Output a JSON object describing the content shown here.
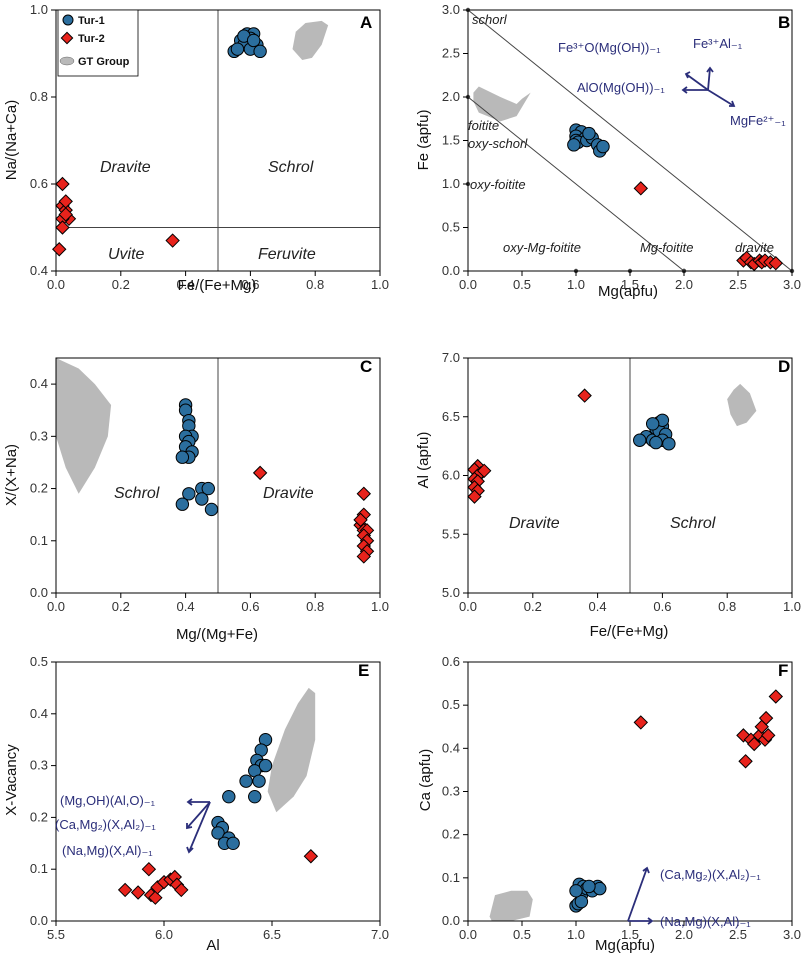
{
  "colors": {
    "tur1": "#2b6e9e",
    "tur2": "#e8231c",
    "gt": "#b9b9b9",
    "vector": "#2b2e7a"
  },
  "legend": {
    "items": [
      "Tur-1",
      "Tur-2",
      "GT Group"
    ],
    "placement": "top-left of panel A"
  },
  "chart_data": [
    {
      "panel": "A",
      "type": "scatter",
      "xlabel": "Fe/(Fe+Mg)",
      "ylabel": "Na/(Na+Ca)",
      "xlim": [
        0,
        1.0
      ],
      "ylim": [
        0.4,
        1.0
      ],
      "xticks": [
        "0.0",
        "0.2",
        "0.4",
        "0.6",
        "0.8",
        "1.0"
      ],
      "yticks": [
        "0.4",
        "0.6",
        "0.8",
        "1.0"
      ],
      "field_labels": [
        "Dravite",
        "Schrol",
        "Uvite",
        "Feruvite"
      ],
      "boundary_lines": [
        {
          "x": 0.5
        },
        {
          "y": 0.5
        }
      ],
      "series": [
        {
          "name": "Tur-1",
          "points": [
            [
              0.55,
              0.905
            ],
            [
              0.57,
              0.93
            ],
            [
              0.59,
              0.945
            ],
            [
              0.61,
              0.945
            ],
            [
              0.6,
              0.935
            ],
            [
              0.58,
              0.92
            ],
            [
              0.62,
              0.92
            ],
            [
              0.6,
              0.91
            ],
            [
              0.63,
              0.905
            ],
            [
              0.56,
              0.91
            ],
            [
              0.58,
              0.94
            ],
            [
              0.61,
              0.93
            ]
          ]
        },
        {
          "name": "Tur-2",
          "points": [
            [
              0.02,
              0.6
            ],
            [
              0.02,
              0.55
            ],
            [
              0.03,
              0.54
            ],
            [
              0.04,
              0.52
            ],
            [
              0.02,
              0.52
            ],
            [
              0.03,
              0.56
            ],
            [
              0.02,
              0.5
            ],
            [
              0.01,
              0.45
            ],
            [
              0.36,
              0.47
            ],
            [
              0.03,
              0.53
            ]
          ]
        },
        {
          "name": "GT Group",
          "polygon": [
            [
              0.74,
              0.95
            ],
            [
              0.77,
              0.97
            ],
            [
              0.82,
              0.975
            ],
            [
              0.84,
              0.965
            ],
            [
              0.82,
              0.92
            ],
            [
              0.79,
              0.89
            ],
            [
              0.76,
              0.885
            ],
            [
              0.73,
              0.91
            ]
          ]
        }
      ]
    },
    {
      "panel": "B",
      "type": "scatter",
      "xlabel": "Mg(apfu)",
      "ylabel": "Fe (apfu)",
      "xlim": [
        0,
        3.0
      ],
      "ylim": [
        0,
        3.0
      ],
      "xticks": [
        "0.0",
        "0.5",
        "1.0",
        "1.5",
        "2.0",
        "2.5",
        "3.0"
      ],
      "yticks": [
        "0.0",
        "0.5",
        "1.0",
        "1.5",
        "2.0",
        "2.5",
        "3.0"
      ],
      "field_labels": [
        "schorl",
        "foitite",
        "oxy-schorl",
        "oxy-foitite",
        "oxy-Mg-foitite",
        "Mg-foitite",
        "dravite"
      ],
      "vector_labels": [
        "Fe³⁺O(Mg(OH))₋₁",
        "Fe³⁺Al₋₁",
        "AlO(Mg(OH))₋₁",
        "MgFe²⁺₋₁"
      ],
      "reference_lines": [
        [
          [
            0,
            3
          ],
          [
            3,
            0
          ]
        ],
        [
          [
            0,
            2
          ],
          [
            2,
            0
          ]
        ]
      ],
      "series": [
        {
          "name": "Tur-1",
          "points": [
            [
              1.0,
              1.62
            ],
            [
              1.05,
              1.6
            ],
            [
              1.0,
              1.55
            ],
            [
              1.08,
              1.52
            ],
            [
              1.0,
              1.5
            ],
            [
              1.02,
              1.48
            ],
            [
              1.1,
              1.5
            ],
            [
              1.15,
              1.53
            ],
            [
              1.12,
              1.58
            ],
            [
              1.2,
              1.45
            ],
            [
              1.22,
              1.38
            ],
            [
              1.25,
              1.43
            ],
            [
              0.98,
              1.45
            ]
          ]
        },
        {
          "name": "Tur-2",
          "points": [
            [
              1.6,
              0.95
            ],
            [
              2.55,
              0.12
            ],
            [
              2.58,
              0.15
            ],
            [
              2.62,
              0.1
            ],
            [
              2.65,
              0.08
            ],
            [
              2.7,
              0.12
            ],
            [
              2.72,
              0.1
            ],
            [
              2.75,
              0.12
            ],
            [
              2.8,
              0.1
            ],
            [
              2.85,
              0.09
            ]
          ]
        },
        {
          "name": "GT Group",
          "polygon": [
            [
              0.05,
              2.05
            ],
            [
              0.1,
              2.12
            ],
            [
              0.3,
              2.0
            ],
            [
              0.45,
              1.92
            ],
            [
              0.5,
              1.98
            ],
            [
              0.58,
              2.05
            ],
            [
              0.45,
              1.78
            ],
            [
              0.3,
              1.72
            ],
            [
              0.1,
              1.82
            ],
            [
              0.05,
              1.95
            ]
          ]
        }
      ]
    },
    {
      "panel": "C",
      "type": "scatter",
      "xlabel": "Mg/(Mg+Fe)",
      "ylabel": "X/(X+Na)",
      "xlim": [
        0,
        1.0
      ],
      "ylim": [
        0,
        0.45
      ],
      "xticks": [
        "0.0",
        "0.2",
        "0.4",
        "0.6",
        "0.8",
        "1.0"
      ],
      "yticks": [
        "0.0",
        "0.1",
        "0.2",
        "0.3",
        "0.4"
      ],
      "field_labels": [
        "Schrol",
        "Dravite"
      ],
      "boundary_lines": [
        {
          "x": 0.5
        }
      ],
      "series": [
        {
          "name": "Tur-1",
          "points": [
            [
              0.4,
              0.36
            ],
            [
              0.4,
              0.35
            ],
            [
              0.41,
              0.33
            ],
            [
              0.41,
              0.32
            ],
            [
              0.42,
              0.3
            ],
            [
              0.4,
              0.3
            ],
            [
              0.41,
              0.29
            ],
            [
              0.4,
              0.28
            ],
            [
              0.42,
              0.27
            ],
            [
              0.41,
              0.26
            ],
            [
              0.39,
              0.26
            ],
            [
              0.41,
              0.19
            ],
            [
              0.45,
              0.2
            ],
            [
              0.47,
              0.2
            ],
            [
              0.45,
              0.18
            ],
            [
              0.39,
              0.17
            ],
            [
              0.48,
              0.16
            ]
          ]
        },
        {
          "name": "Tur-2",
          "points": [
            [
              0.63,
              0.23
            ],
            [
              0.95,
              0.19
            ],
            [
              0.95,
              0.15
            ],
            [
              0.94,
              0.13
            ],
            [
              0.95,
              0.12
            ],
            [
              0.96,
              0.12
            ],
            [
              0.95,
              0.11
            ],
            [
              0.96,
              0.1
            ],
            [
              0.95,
              0.09
            ],
            [
              0.96,
              0.08
            ],
            [
              0.95,
              0.07
            ],
            [
              0.94,
              0.14
            ]
          ]
        },
        {
          "name": "GT Group",
          "polygon": [
            [
              0.0,
              0.45
            ],
            [
              0.07,
              0.43
            ],
            [
              0.12,
              0.4
            ],
            [
              0.17,
              0.36
            ],
            [
              0.16,
              0.3
            ],
            [
              0.12,
              0.24
            ],
            [
              0.07,
              0.19
            ],
            [
              0.03,
              0.24
            ],
            [
              0.0,
              0.3
            ]
          ]
        }
      ]
    },
    {
      "panel": "D",
      "type": "scatter",
      "xlabel": "Fe/(Fe+Mg)",
      "ylabel": "Al (apfu)",
      "xlim": [
        0,
        1.0
      ],
      "ylim": [
        5.0,
        7.0
      ],
      "xticks": [
        "0.0",
        "0.2",
        "0.4",
        "0.6",
        "0.8",
        "1.0"
      ],
      "yticks": [
        "5.0",
        "5.5",
        "6.0",
        "6.5",
        "7.0"
      ],
      "field_labels": [
        "Dravite",
        "Schrol"
      ],
      "boundary_lines": [
        {
          "x": 0.5
        }
      ],
      "series": [
        {
          "name": "Tur-1",
          "points": [
            [
              0.55,
              6.33
            ],
            [
              0.53,
              6.3
            ],
            [
              0.57,
              6.3
            ],
            [
              0.59,
              6.45
            ],
            [
              0.6,
              6.42
            ],
            [
              0.58,
              6.4
            ],
            [
              0.59,
              6.38
            ],
            [
              0.61,
              6.35
            ],
            [
              0.6,
              6.3
            ],
            [
              0.58,
              6.28
            ],
            [
              0.62,
              6.27
            ],
            [
              0.6,
              6.47
            ],
            [
              0.57,
              6.44
            ]
          ]
        },
        {
          "name": "Tur-2",
          "points": [
            [
              0.36,
              6.68
            ],
            [
              0.03,
              6.08
            ],
            [
              0.02,
              6.05
            ],
            [
              0.04,
              6.02
            ],
            [
              0.03,
              6.0
            ],
            [
              0.02,
              5.97
            ],
            [
              0.03,
              5.95
            ],
            [
              0.02,
              5.9
            ],
            [
              0.03,
              5.87
            ],
            [
              0.02,
              5.82
            ],
            [
              0.05,
              6.04
            ]
          ]
        },
        {
          "name": "GT Group",
          "polygon": [
            [
              0.82,
              6.73
            ],
            [
              0.84,
              6.78
            ],
            [
              0.87,
              6.7
            ],
            [
              0.89,
              6.55
            ],
            [
              0.86,
              6.45
            ],
            [
              0.83,
              6.42
            ],
            [
              0.81,
              6.52
            ],
            [
              0.8,
              6.65
            ]
          ]
        }
      ]
    },
    {
      "panel": "E",
      "type": "scatter",
      "xlabel": "Al",
      "ylabel": "X-Vacancy",
      "xlim": [
        5.5,
        7.0
      ],
      "ylim": [
        0,
        0.5
      ],
      "xticks": [
        "5.5",
        "6.0",
        "6.5",
        "7.0"
      ],
      "yticks": [
        "0.0",
        "0.1",
        "0.2",
        "0.3",
        "0.4",
        "0.5"
      ],
      "vector_labels": [
        "(Mg,OH)(Al,O)₋₁",
        "(Ca,Mg₂)(X,Al₂)₋₁",
        "(Na,Mg)(X,Al)₋₁"
      ],
      "series": [
        {
          "name": "Tur-1",
          "points": [
            [
              6.47,
              0.35
            ],
            [
              6.45,
              0.33
            ],
            [
              6.43,
              0.31
            ],
            [
              6.45,
              0.3
            ],
            [
              6.42,
              0.29
            ],
            [
              6.47,
              0.3
            ],
            [
              6.44,
              0.27
            ],
            [
              6.38,
              0.27
            ],
            [
              6.42,
              0.24
            ],
            [
              6.3,
              0.24
            ],
            [
              6.25,
              0.19
            ],
            [
              6.27,
              0.18
            ],
            [
              6.25,
              0.17
            ],
            [
              6.3,
              0.16
            ],
            [
              6.28,
              0.15
            ],
            [
              6.32,
              0.15
            ]
          ]
        },
        {
          "name": "Tur-2",
          "points": [
            [
              6.68,
              0.125
            ],
            [
              5.82,
              0.06
            ],
            [
              5.88,
              0.055
            ],
            [
              5.93,
              0.1
            ],
            [
              5.94,
              0.05
            ],
            [
              5.96,
              0.045
            ],
            [
              5.97,
              0.065
            ],
            [
              6.0,
              0.075
            ],
            [
              6.03,
              0.08
            ],
            [
              6.05,
              0.085
            ],
            [
              6.06,
              0.07
            ],
            [
              6.08,
              0.06
            ]
          ]
        },
        {
          "name": "GT Group",
          "polygon": [
            [
              6.62,
              0.42
            ],
            [
              6.67,
              0.45
            ],
            [
              6.7,
              0.44
            ],
            [
              6.7,
              0.35
            ],
            [
              6.66,
              0.28
            ],
            [
              6.6,
              0.24
            ],
            [
              6.52,
              0.21
            ],
            [
              6.48,
              0.25
            ],
            [
              6.5,
              0.3
            ],
            [
              6.56,
              0.37
            ]
          ]
        }
      ]
    },
    {
      "panel": "F",
      "type": "scatter",
      "xlabel": "Mg(apfu)",
      "ylabel": "Ca (apfu)",
      "xlim": [
        0,
        3.0
      ],
      "ylim": [
        0,
        0.6
      ],
      "xticks": [
        "0.0",
        "0.5",
        "1.0",
        "1.5",
        "2.0",
        "2.5",
        "3.0"
      ],
      "yticks": [
        "0.0",
        "0.1",
        "0.2",
        "0.3",
        "0.4",
        "0.5",
        "0.6"
      ],
      "vector_labels": [
        "(Ca,Mg₂)(X,Al₂)₋₁",
        "(Na,Mg)(X,Al)₋₁"
      ],
      "series": [
        {
          "name": "Tur-1",
          "points": [
            [
              1.0,
              0.035
            ],
            [
              1.02,
              0.04
            ],
            [
              1.05,
              0.06
            ],
            [
              1.03,
              0.085
            ],
            [
              1.07,
              0.08
            ],
            [
              1.1,
              0.075
            ],
            [
              1.15,
              0.07
            ],
            [
              1.2,
              0.08
            ],
            [
              1.22,
              0.075
            ],
            [
              1.05,
              0.045
            ],
            [
              1.12,
              0.08
            ],
            [
              1.0,
              0.07
            ]
          ]
        },
        {
          "name": "Tur-2",
          "points": [
            [
              1.6,
              0.46
            ],
            [
              2.55,
              0.43
            ],
            [
              2.57,
              0.37
            ],
            [
              2.62,
              0.42
            ],
            [
              2.65,
              0.41
            ],
            [
              2.7,
              0.43
            ],
            [
              2.72,
              0.45
            ],
            [
              2.75,
              0.42
            ],
            [
              2.76,
              0.47
            ],
            [
              2.78,
              0.43
            ],
            [
              2.85,
              0.52
            ]
          ]
        },
        {
          "name": "GT Group",
          "polygon": [
            [
              0.2,
              0.01
            ],
            [
              0.25,
              0.06
            ],
            [
              0.4,
              0.07
            ],
            [
              0.55,
              0.07
            ],
            [
              0.6,
              0.05
            ],
            [
              0.57,
              0.01
            ],
            [
              0.4,
              0.0
            ],
            [
              0.22,
              0.0
            ]
          ]
        }
      ]
    }
  ]
}
